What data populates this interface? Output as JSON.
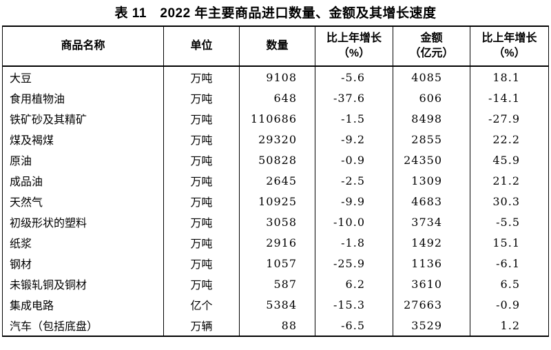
{
  "title": "表 11　2022 年主要商品进口数量、金额及其增长速度",
  "table": {
    "columns": {
      "name": "商品名称",
      "unit": "单位",
      "quantity": "数量",
      "qty_growth": [
        "比上年增长",
        "（%）"
      ],
      "amount": [
        "金额",
        "（亿元）"
      ],
      "amt_growth": [
        "比上年增长",
        "（%）"
      ]
    },
    "rows": [
      {
        "name": "大豆",
        "unit": "万吨",
        "quantity": "9108",
        "qty_growth": "-5.6",
        "amount": "4085",
        "amt_growth": "18.1"
      },
      {
        "name": "食用植物油",
        "unit": "万吨",
        "quantity": "648",
        "qty_growth": "-37.6",
        "amount": "606",
        "amt_growth": "-14.1"
      },
      {
        "name": "铁矿砂及其精矿",
        "unit": "万吨",
        "quantity": "110686",
        "qty_growth": "-1.5",
        "amount": "8498",
        "amt_growth": "-27.9"
      },
      {
        "name": "煤及褐煤",
        "unit": "万吨",
        "quantity": "29320",
        "qty_growth": "-9.2",
        "amount": "2855",
        "amt_growth": "22.2"
      },
      {
        "name": "原油",
        "unit": "万吨",
        "quantity": "50828",
        "qty_growth": "-0.9",
        "amount": "24350",
        "amt_growth": "45.9"
      },
      {
        "name": "成品油",
        "unit": "万吨",
        "quantity": "2645",
        "qty_growth": "-2.5",
        "amount": "1309",
        "amt_growth": "21.2"
      },
      {
        "name": "天然气",
        "unit": "万吨",
        "quantity": "10925",
        "qty_growth": "-9.9",
        "amount": "4683",
        "amt_growth": "30.3"
      },
      {
        "name": "初级形状的塑料",
        "unit": "万吨",
        "quantity": "3058",
        "qty_growth": "-10.0",
        "amount": "3734",
        "amt_growth": "-5.5"
      },
      {
        "name": "纸浆",
        "unit": "万吨",
        "quantity": "2916",
        "qty_growth": "-1.8",
        "amount": "1492",
        "amt_growth": "15.1"
      },
      {
        "name": "钢材",
        "unit": "万吨",
        "quantity": "1057",
        "qty_growth": "-25.9",
        "amount": "1136",
        "amt_growth": "-6.1"
      },
      {
        "name": "未锻轧铜及铜材",
        "unit": "万吨",
        "quantity": "587",
        "qty_growth": "6.2",
        "amount": "3610",
        "amt_growth": "6.5"
      },
      {
        "name": "集成电路",
        "unit": "亿个",
        "quantity": "5384",
        "qty_growth": "-15.3",
        "amount": "27663",
        "amt_growth": "-0.9"
      },
      {
        "name": "汽车（包括底盘）",
        "unit": "万辆",
        "quantity": "88",
        "qty_growth": "-6.5",
        "amount": "3529",
        "amt_growth": "1.2"
      }
    ]
  },
  "colors": {
    "text": "#000000",
    "border": "#000000",
    "background": "#ffffff"
  }
}
